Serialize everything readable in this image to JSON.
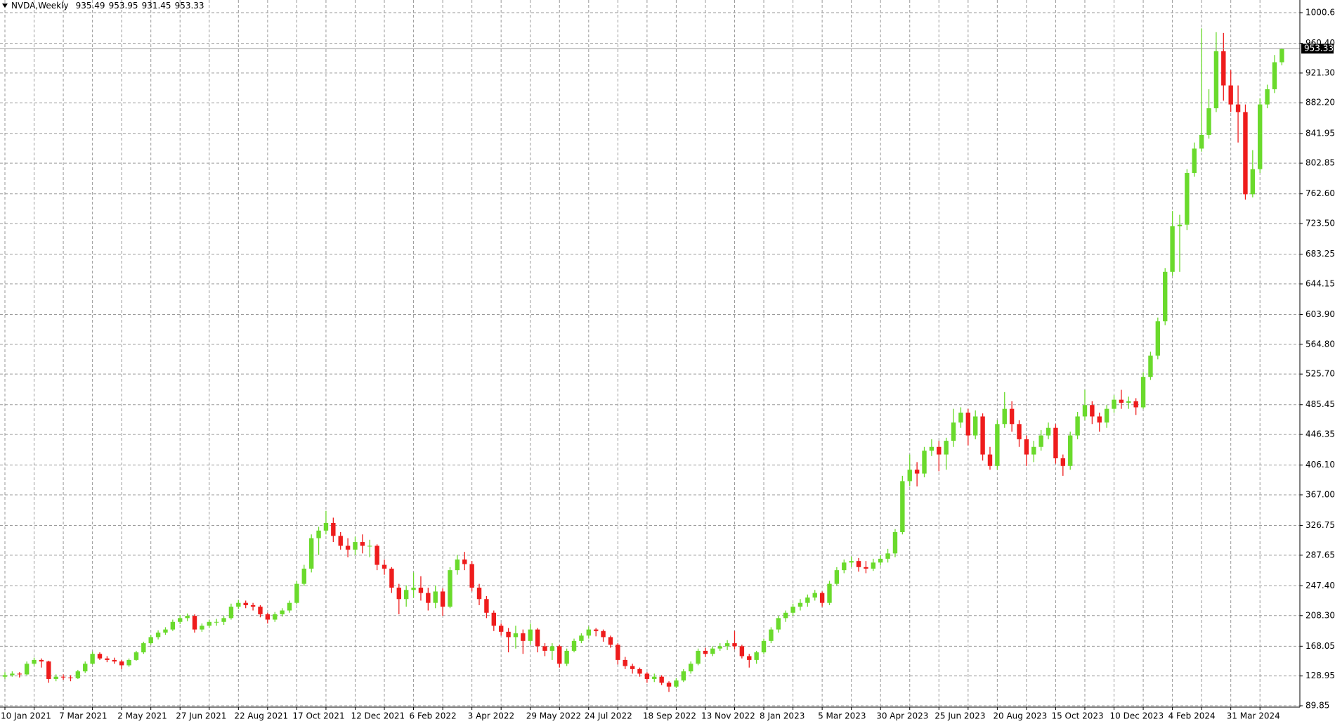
{
  "chart_data": {
    "type": "candlestick",
    "symbol": "NVDA,Weekly",
    "up_color": "#6ada2c",
    "down_color": "#ee1c1c",
    "grid": true,
    "price_line": true,
    "ylim": [
      89.85,
      1000.65
    ],
    "yticks": [
      89.85,
      128.95,
      168.05,
      {
        "value": 208.3,
        "label": "208.30"
      },
      {
        "value": 247.4,
        "label": "247.40"
      },
      287.65,
      326.75,
      {
        "value": 367,
        "label": "367.00"
      },
      {
        "value": 406.1,
        "label": "406.10"
      },
      446.35,
      485.45,
      {
        "value": 525.7,
        "label": "525.70"
      },
      {
        "value": 564.8,
        "label": "564.80"
      },
      {
        "value": 603.9,
        "label": "603.90"
      },
      644.15,
      683.25,
      {
        "value": 723.5,
        "label": "723.50"
      },
      {
        "value": 762.6,
        "label": "762.60"
      },
      802.85,
      841.95,
      {
        "value": 882.2,
        "label": "882.20"
      },
      {
        "value": 921.3,
        "label": "921.30"
      },
      {
        "value": 960.4,
        "label": "960.40"
      },
      1000.65
    ],
    "categories": [
      "10 Jan 2021",
      null,
      null,
      null,
      null,
      null,
      null,
      null,
      "7 Mar 2021",
      null,
      null,
      null,
      null,
      null,
      null,
      null,
      "2 May 2021",
      null,
      null,
      null,
      null,
      null,
      null,
      null,
      "27 Jun 2021",
      null,
      null,
      null,
      null,
      null,
      null,
      null,
      "22 Aug 2021",
      null,
      null,
      null,
      null,
      null,
      null,
      null,
      "17 Oct 2021",
      null,
      null,
      null,
      null,
      null,
      null,
      null,
      "12 Dec 2021",
      null,
      null,
      null,
      null,
      null,
      null,
      null,
      "6 Feb 2022",
      null,
      null,
      null,
      null,
      null,
      null,
      null,
      "3 Apr 2022",
      null,
      null,
      null,
      null,
      null,
      null,
      null,
      "29 May 2022",
      null,
      null,
      null,
      null,
      null,
      null,
      null,
      "24 Jul 2022",
      null,
      null,
      null,
      null,
      null,
      null,
      null,
      "18 Sep 2022",
      null,
      null,
      null,
      null,
      null,
      null,
      null,
      "13 Nov 2022",
      null,
      null,
      null,
      null,
      null,
      null,
      null,
      "8 Jan 2023",
      null,
      null,
      null,
      null,
      null,
      null,
      null,
      "5 Mar 2023",
      null,
      null,
      null,
      null,
      null,
      null,
      null,
      "30 Apr 2023",
      null,
      null,
      null,
      null,
      null,
      null,
      null,
      "25 Jun 2023",
      null,
      null,
      null,
      null,
      null,
      null,
      null,
      "20 Aug 2023",
      null,
      null,
      null,
      null,
      null,
      null,
      null,
      "15 Oct 2023",
      null,
      null,
      null,
      null,
      null,
      null,
      null,
      "10 Dec 2023",
      null,
      null,
      null,
      null,
      null,
      null,
      null,
      "4 Feb 2024",
      null,
      null,
      null,
      null,
      null,
      null,
      null,
      "31 Mar 2024",
      null,
      null,
      null,
      null,
      null,
      null,
      null
    ],
    "candles": [
      [
        128,
        134,
        125,
        130
      ],
      [
        130,
        135,
        128,
        132
      ],
      [
        132,
        134,
        127,
        131
      ],
      [
        131,
        148,
        130,
        145
      ],
      [
        145,
        153,
        142,
        150
      ],
      [
        150,
        152,
        140,
        148
      ],
      [
        148,
        149,
        120,
        125
      ],
      [
        125,
        131,
        122,
        128
      ],
      [
        128,
        131,
        124,
        127
      ],
      [
        127,
        130,
        122,
        126
      ],
      [
        126,
        137,
        125,
        135
      ],
      [
        135,
        148,
        133,
        145
      ],
      [
        145,
        161,
        144,
        158
      ],
      [
        158,
        160,
        150,
        152
      ],
      [
        152,
        155,
        147,
        150
      ],
      [
        150,
        153,
        145,
        148
      ],
      [
        148,
        150,
        138,
        143
      ],
      [
        143,
        152,
        141,
        150
      ],
      [
        150,
        162,
        149,
        160
      ],
      [
        160,
        174,
        158,
        172
      ],
      [
        172,
        183,
        170,
        180
      ],
      [
        180,
        189,
        177,
        186
      ],
      [
        186,
        193,
        183,
        190
      ],
      [
        190,
        203,
        188,
        200
      ],
      [
        200,
        209,
        197,
        205
      ],
      [
        205,
        211,
        201,
        208
      ],
      [
        208,
        210,
        186,
        190
      ],
      [
        190,
        198,
        187,
        195
      ],
      [
        195,
        203,
        192,
        200
      ],
      [
        200,
        204,
        195,
        200
      ],
      [
        200,
        208,
        196,
        205
      ],
      [
        205,
        224,
        203,
        220
      ],
      [
        220,
        229,
        217,
        225
      ],
      [
        225,
        228,
        218,
        222
      ],
      [
        222,
        225,
        215,
        220
      ],
      [
        220,
        222,
        206,
        210
      ],
      [
        210,
        212,
        198,
        203
      ],
      [
        203,
        213,
        200,
        210
      ],
      [
        210,
        218,
        207,
        215
      ],
      [
        215,
        228,
        212,
        225
      ],
      [
        225,
        254,
        223,
        250
      ],
      [
        250,
        275,
        247,
        270
      ],
      [
        270,
        315,
        265,
        310
      ],
      [
        310,
        325,
        288,
        320
      ],
      [
        320,
        346,
        315,
        330
      ],
      [
        330,
        337,
        305,
        313
      ],
      [
        313,
        318,
        295,
        300
      ],
      [
        300,
        310,
        285,
        295
      ],
      [
        295,
        312,
        288,
        305
      ],
      [
        305,
        315,
        290,
        300
      ],
      [
        300,
        308,
        285,
        300
      ],
      [
        300,
        302,
        268,
        275
      ],
      [
        275,
        282,
        262,
        270
      ],
      [
        270,
        272,
        238,
        245
      ],
      [
        245,
        250,
        210,
        230
      ],
      [
        230,
        248,
        220,
        242
      ],
      [
        242,
        265,
        232,
        245
      ],
      [
        245,
        260,
        228,
        238
      ],
      [
        238,
        245,
        215,
        225
      ],
      [
        225,
        248,
        218,
        240
      ],
      [
        240,
        244,
        208,
        220
      ],
      [
        220,
        272,
        218,
        268
      ],
      [
        268,
        288,
        262,
        282
      ],
      [
        282,
        292,
        268,
        276
      ],
      [
        276,
        280,
        240,
        245
      ],
      [
        245,
        250,
        222,
        230
      ],
      [
        230,
        234,
        205,
        212
      ],
      [
        212,
        215,
        188,
        195
      ],
      [
        195,
        198,
        182,
        187
      ],
      [
        187,
        192,
        160,
        180
      ],
      [
        180,
        195,
        165,
        185
      ],
      [
        185,
        190,
        158,
        175
      ],
      [
        175,
        198,
        170,
        190
      ],
      [
        190,
        192,
        160,
        168
      ],
      [
        168,
        172,
        155,
        162
      ],
      [
        162,
        172,
        150,
        168
      ],
      [
        168,
        170,
        140,
        145
      ],
      [
        145,
        165,
        142,
        162
      ],
      [
        162,
        178,
        160,
        175
      ],
      [
        175,
        185,
        172,
        182
      ],
      [
        182,
        194,
        178,
        190
      ],
      [
        190,
        192,
        181,
        188
      ],
      [
        188,
        190,
        174,
        180
      ],
      [
        180,
        182,
        166,
        170
      ],
      [
        170,
        172,
        144,
        150
      ],
      [
        150,
        154,
        138,
        142
      ],
      [
        142,
        145,
        132,
        138
      ],
      [
        138,
        140,
        128,
        132
      ],
      [
        132,
        134,
        120,
        125
      ],
      [
        125,
        132,
        121,
        128
      ],
      [
        128,
        130,
        117,
        120
      ],
      [
        120,
        122,
        108,
        115
      ],
      [
        115,
        126,
        113,
        123
      ],
      [
        123,
        138,
        121,
        135
      ],
      [
        135,
        148,
        132,
        145
      ],
      [
        145,
        165,
        143,
        162
      ],
      [
        162,
        166,
        154,
        158
      ],
      [
        158,
        168,
        155,
        165
      ],
      [
        165,
        172,
        162,
        168
      ],
      [
        168,
        176,
        163,
        172
      ],
      [
        172,
        188,
        164,
        168
      ],
      [
        168,
        170,
        152,
        155
      ],
      [
        155,
        158,
        140,
        150
      ],
      [
        150,
        162,
        145,
        160
      ],
      [
        160,
        178,
        158,
        175
      ],
      [
        175,
        193,
        172,
        190
      ],
      [
        190,
        208,
        186,
        205
      ],
      [
        205,
        215,
        200,
        212
      ],
      [
        212,
        224,
        208,
        220
      ],
      [
        220,
        230,
        215,
        225
      ],
      [
        225,
        236,
        220,
        232
      ],
      [
        232,
        242,
        228,
        238
      ],
      [
        238,
        240,
        220,
        225
      ],
      [
        225,
        254,
        222,
        250
      ],
      [
        250,
        272,
        248,
        268
      ],
      [
        268,
        282,
        264,
        278
      ],
      [
        278,
        286,
        272,
        280
      ],
      [
        280,
        284,
        266,
        272
      ],
      [
        272,
        280,
        264,
        270
      ],
      [
        270,
        283,
        267,
        278
      ],
      [
        278,
        288,
        274,
        283
      ],
      [
        283,
        296,
        278,
        290
      ],
      [
        290,
        322,
        285,
        318
      ],
      [
        318,
        392,
        315,
        385
      ],
      [
        385,
        420,
        378,
        400
      ],
      [
        400,
        410,
        378,
        395
      ],
      [
        395,
        430,
        390,
        425
      ],
      [
        425,
        440,
        418,
        430
      ],
      [
        430,
        438,
        398,
        420
      ],
      [
        420,
        442,
        400,
        438
      ],
      [
        438,
        480,
        430,
        462
      ],
      [
        462,
        482,
        455,
        475
      ],
      [
        475,
        480,
        432,
        445
      ],
      [
        445,
        478,
        440,
        470
      ],
      [
        470,
        474,
        412,
        420
      ],
      [
        420,
        430,
        400,
        405
      ],
      [
        405,
        465,
        400,
        460
      ],
      [
        460,
        502,
        455,
        480
      ],
      [
        480,
        490,
        450,
        460
      ],
      [
        460,
        465,
        430,
        440
      ],
      [
        440,
        445,
        405,
        420
      ],
      [
        420,
        438,
        410,
        430
      ],
      [
        430,
        452,
        425,
        445
      ],
      [
        445,
        462,
        440,
        455
      ],
      [
        455,
        460,
        408,
        415
      ],
      [
        415,
        420,
        392,
        405
      ],
      [
        405,
        450,
        400,
        445
      ],
      [
        445,
        476,
        440,
        470
      ],
      [
        470,
        505,
        465,
        485
      ],
      [
        485,
        490,
        460,
        470
      ],
      [
        470,
        475,
        450,
        462
      ],
      [
        462,
        485,
        455,
        480
      ],
      [
        480,
        498,
        475,
        492
      ],
      [
        492,
        505,
        480,
        488
      ],
      [
        488,
        496,
        480,
        490
      ],
      [
        490,
        494,
        472,
        482
      ],
      [
        482,
        528,
        480,
        522
      ],
      [
        522,
        555,
        518,
        550
      ],
      [
        550,
        600,
        545,
        595
      ],
      [
        595,
        665,
        590,
        660
      ],
      [
        660,
        740,
        655,
        720
      ],
      [
        720,
        735,
        660,
        722
      ],
      [
        722,
        795,
        715,
        790
      ],
      [
        790,
        830,
        785,
        822
      ],
      [
        822,
        980,
        818,
        840
      ],
      [
        840,
        900,
        835,
        875
      ],
      [
        875,
        975,
        870,
        950
      ],
      [
        950,
        974,
        885,
        905
      ],
      [
        905,
        925,
        870,
        880
      ],
      [
        880,
        905,
        830,
        870
      ],
      [
        870,
        880,
        755,
        762
      ],
      [
        762,
        820,
        758,
        795
      ],
      [
        795,
        888,
        790,
        880
      ],
      [
        880,
        906,
        875,
        900
      ],
      [
        900,
        945,
        895,
        935.49
      ],
      [
        935.49,
        953.95,
        931.45,
        953.33
      ]
    ]
  }
}
